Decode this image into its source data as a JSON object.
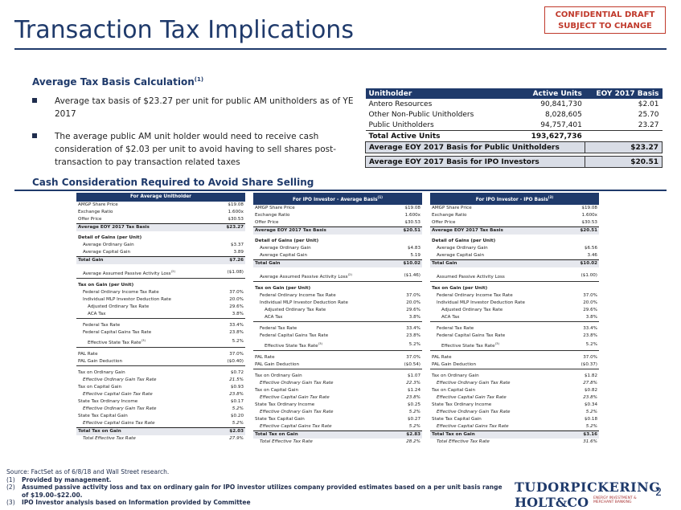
{
  "header": {
    "title": "Transaction Tax Implications",
    "confidential": [
      "CONFIDENTIAL DRAFT",
      "SUBJECT TO CHANGE"
    ]
  },
  "section1": {
    "title": "Average Tax Basis Calculation",
    "title_sup": "(1)",
    "bullets": [
      "Average tax basis of $23.27 per unit for public AM unitholders as of YE 2017",
      "The average public AM unit holder would need to receive cash consideration of $2.03 per unit to avoid having to sell shares post-transaction to pay transaction related taxes"
    ],
    "table": {
      "headers": [
        "Unitholder",
        "Active Units",
        "EOY 2017 Basis"
      ],
      "rows": [
        [
          "Antero Resources",
          "90,841,730",
          "$2.01"
        ],
        [
          "Other Non-Public Unitholders",
          "8,028,605",
          "25.70"
        ],
        [
          "Public Unitholders",
          "94,757,401",
          "23.27"
        ]
      ],
      "total": [
        "Total Active Units",
        "193,627,736",
        ""
      ],
      "highlights": [
        [
          "Average EOY 2017 Basis for Public Unitholders",
          "$23.27"
        ],
        [
          "Average EOY 2017 Basis for IPO Investors",
          "$20.51"
        ]
      ]
    }
  },
  "section2": {
    "title": "Cash Consideration Required to Avoid Share Selling",
    "panels": [
      {
        "header": "For Average Unitholder",
        "share_price": "$19.08",
        "exchange_ratio": "1.600x",
        "offer_price": "$30.53",
        "basis": "$23.27",
        "ord_gain": "$3.37",
        "cap_gain": "3.89",
        "total_gain": "$7.26",
        "passive_label": "Average Assumed Passive Activity Loss",
        "passive_sup": "(2)",
        "passive": "($1.08)",
        "fed_ord": "37.0%",
        "mlp_ded": "20.0%",
        "adj_ord": "29.6%",
        "aca": "3.8%",
        "fed_tax": "33.4%",
        "fed_cap": "23.8%",
        "state": "5.2%",
        "pal_rate": "37.0%",
        "pal_ded": "($0.40)",
        "tax_ord": "$0.72",
        "eff_ord": "21.5%",
        "tax_cap": "$0.93",
        "eff_cap": "23.8%",
        "state_ord": "$0.17",
        "eff_state_ord": "5.2%",
        "state_cap": "$0.20",
        "eff_state_cap": "5.2%",
        "total_tax": "$2.03",
        "total_eff": "27.9%"
      },
      {
        "header": "For IPO Investor - Average Basis",
        "header_sup": "(1)",
        "share_price": "$19.08",
        "exchange_ratio": "1.600x",
        "offer_price": "$30.53",
        "basis": "$20.51",
        "ord_gain": "$4.83",
        "cap_gain": "5.19",
        "total_gain": "$10.02",
        "passive_label": "Average Assumed Passive Activity Loss",
        "passive_sup": "(2)",
        "passive": "($1.46)",
        "fed_ord": "37.0%",
        "mlp_ded": "20.0%",
        "adj_ord": "29.6%",
        "aca": "3.8%",
        "fed_tax": "33.4%",
        "fed_cap": "23.8%",
        "state": "5.2%",
        "pal_rate": "37.0%",
        "pal_ded": "($0.54)",
        "tax_ord": "$1.07",
        "eff_ord": "22.3%",
        "tax_cap": "$1.24",
        "eff_cap": "23.8%",
        "state_ord": "$0.25",
        "eff_state_ord": "5.2%",
        "state_cap": "$0.27",
        "eff_state_cap": "5.2%",
        "total_tax": "$2.83",
        "total_eff": "28.2%"
      },
      {
        "header": "For IPO Investor - IPO Basis",
        "header_sup": "(3)",
        "share_price": "$19.08",
        "exchange_ratio": "1.600x",
        "offer_price": "$30.53",
        "basis": "$20.51",
        "ord_gain": "$6.56",
        "cap_gain": "3.46",
        "total_gain": "$10.02",
        "passive_label": "Assumed Passive Activity Loss",
        "passive_sup": "",
        "passive": "($1.00)",
        "fed_ord": "37.0%",
        "mlp_ded": "20.0%",
        "adj_ord": "29.6%",
        "aca": "3.8%",
        "fed_tax": "33.4%",
        "fed_cap": "23.8%",
        "state": "5.2%",
        "pal_rate": "37.0%",
        "pal_ded": "($0.37)",
        "tax_ord": "$1.82",
        "eff_ord": "27.8%",
        "tax_cap": "$0.82",
        "eff_cap": "23.8%",
        "state_ord": "$0.34",
        "eff_state_ord": "5.2%",
        "state_cap": "$0.18",
        "eff_state_cap": "5.2%",
        "total_tax": "$3.16",
        "total_eff": "31.6%"
      }
    ],
    "labels": {
      "share_price": "AMGP Share Price",
      "exchange_ratio": "Exchange Ratio",
      "offer_price": "Offer Price",
      "basis": "Average EOY 2017 Tax Basis",
      "detail": "Detail of Gains (per Unit)",
      "ord_gain": "Average Ordinary Gain",
      "cap_gain": "Average Capital Gain",
      "total_gain": "Total Gain",
      "tax_on_gain": "Tax on Gain (per Unit)",
      "fed_ord": "Federal Ordinary Income Tax Rate",
      "mlp_ded": "Individual MLP Investor Deduction Rate",
      "adj_ord": "Adjusted Ordinary Tax Rate",
      "aca": "ACA Tax",
      "fed_tax": "Federal Tax Rate",
      "fed_cap": "Federal Capital Gains Tax Rate",
      "state": "Effective State Tax Rate",
      "state_sup": "(3)",
      "pal_rate": "PAL Rate",
      "pal_ded": "PAL Gain Deduction",
      "tax_ord": "Tax on Ordinary Gain",
      "eff_ord": "Effective Ordinary Gain Tax Rate",
      "tax_cap": "Tax on Capital Gain",
      "eff_cap": "Effective Capital Gain Tax Rate",
      "state_ord": "State Tax Ordinary Income",
      "eff_state_ord": "Effective Ordinary Gain Tax Rate",
      "state_cap": "State Tax Capital Gain",
      "eff_state_cap": "Effective Capital Gains Tax Rate",
      "total_tax": "Total Tax on Gain",
      "total_eff": "Total Effective Tax Rate"
    }
  },
  "footnotes": {
    "source": "Source: FactSet as of 6/8/18 and Wall Street research.",
    "notes": [
      [
        "(1)",
        "Provided by management."
      ],
      [
        "(2)",
        "Assumed passive activity loss and tax on ordinary gain for IPO investor utilizes company provided estimates based on a per unit basis range of $19.00–$22.00."
      ],
      [
        "(3)",
        "IPO Investor analysis based on Information provided by Committee"
      ]
    ]
  },
  "logo": {
    "line1": "TUDORPICKERING",
    "line2": "HOLT&CO",
    "tagline": [
      "ENERGY INVESTMENT &",
      "MERCHANT BANKING"
    ]
  },
  "page_number": "2"
}
